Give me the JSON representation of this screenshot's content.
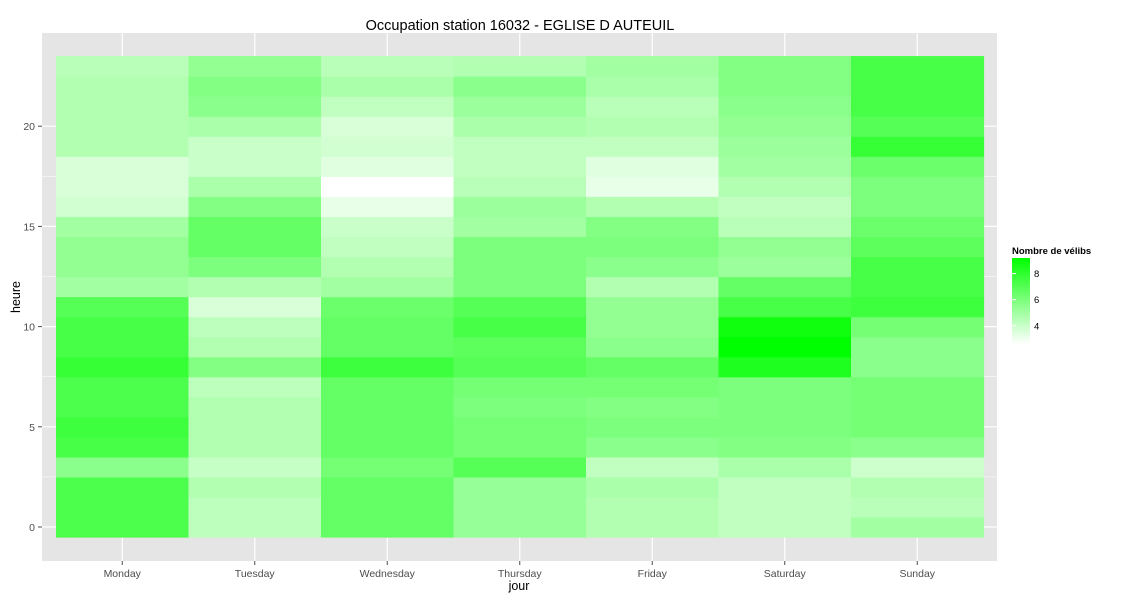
{
  "chart_data": {
    "type": "heatmap",
    "title": "Occupation station 16032 - EGLISE D AUTEUIL",
    "xlabel": "jour",
    "ylabel": "heure",
    "categories": [
      "Monday",
      "Tuesday",
      "Wednesday",
      "Thursday",
      "Friday",
      "Saturday",
      "Sunday"
    ],
    "y_hours": [
      0,
      1,
      2,
      3,
      4,
      5,
      6,
      7,
      8,
      9,
      10,
      11,
      12,
      13,
      14,
      15,
      16,
      17,
      18,
      19,
      20,
      21,
      22,
      23
    ],
    "y_ticks": [
      0,
      5,
      10,
      15,
      20
    ],
    "ylim": [
      -0.5,
      23.5
    ],
    "grid": true,
    "color_scale": {
      "low": "#ffffff",
      "high": "#00ff00",
      "min": 2.6,
      "max": 9.2
    },
    "legend": {
      "title": "Nombre de vélibs",
      "ticks": [
        4,
        6,
        8
      ],
      "position": "right"
    },
    "values": [
      [
        7.2,
        4.3,
        6.6,
        5.3,
        4.6,
        4.2,
        5.0
      ],
      [
        7.2,
        4.3,
        6.6,
        5.3,
        4.6,
        4.2,
        4.4
      ],
      [
        7.2,
        4.6,
        6.6,
        5.3,
        4.8,
        4.2,
        4.6
      ],
      [
        5.6,
        4.1,
        6.2,
        7.0,
        4.2,
        4.8,
        3.9
      ],
      [
        7.4,
        4.6,
        6.6,
        6.2,
        5.6,
        5.8,
        5.6
      ],
      [
        7.6,
        4.6,
        6.6,
        6.2,
        6.0,
        6.0,
        6.2
      ],
      [
        7.2,
        4.6,
        6.6,
        6.0,
        5.8,
        6.0,
        6.2
      ],
      [
        7.2,
        4.3,
        6.6,
        6.2,
        6.2,
        6.0,
        6.2
      ],
      [
        7.8,
        5.8,
        7.6,
        7.0,
        6.6,
        8.4,
        5.6
      ],
      [
        7.4,
        4.6,
        6.6,
        6.8,
        5.6,
        9.2,
        5.6
      ],
      [
        7.4,
        4.3,
        6.6,
        7.4,
        5.4,
        8.8,
        6.2
      ],
      [
        7.0,
        3.6,
        6.4,
        7.0,
        5.4,
        7.4,
        7.6
      ],
      [
        5.0,
        4.6,
        5.0,
        6.0,
        4.6,
        6.6,
        7.4
      ],
      [
        5.4,
        6.0,
        4.6,
        6.0,
        5.6,
        5.2,
        7.4
      ],
      [
        5.4,
        6.6,
        4.2,
        6.0,
        6.0,
        5.4,
        6.8
      ],
      [
        5.0,
        6.6,
        4.0,
        5.0,
        5.8,
        4.4,
        6.4
      ],
      [
        3.8,
        5.8,
        3.2,
        5.2,
        4.6,
        4.2,
        6.0
      ],
      [
        3.6,
        4.8,
        2.6,
        4.4,
        3.2,
        4.6,
        6.0
      ],
      [
        3.6,
        4.0,
        3.4,
        4.2,
        3.4,
        5.0,
        6.4
      ],
      [
        4.6,
        4.0,
        3.8,
        4.2,
        4.2,
        5.2,
        7.8
      ],
      [
        4.6,
        4.8,
        3.6,
        4.8,
        4.6,
        5.4,
        7.0
      ],
      [
        4.6,
        5.6,
        4.2,
        5.2,
        4.4,
        5.6,
        7.4
      ],
      [
        4.6,
        5.8,
        4.8,
        5.6,
        4.8,
        5.8,
        7.4
      ],
      [
        4.4,
        5.4,
        4.4,
        4.6,
        5.0,
        5.8,
        7.4
      ]
    ]
  }
}
